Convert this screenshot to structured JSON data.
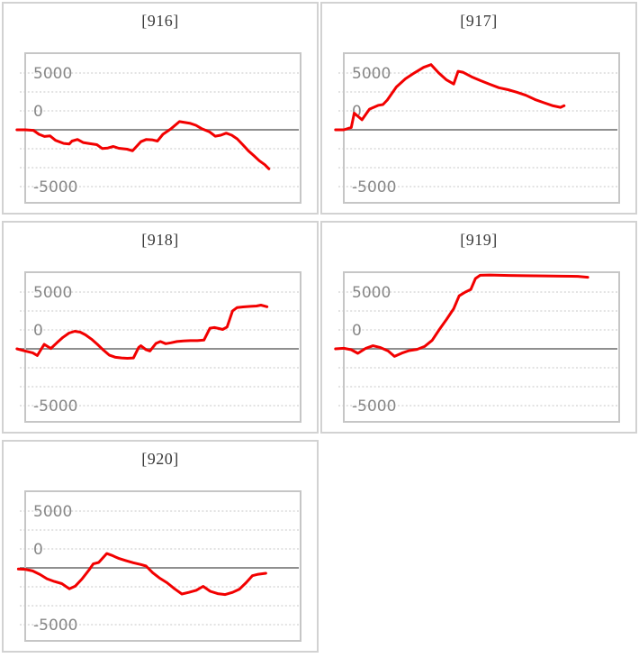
{
  "style": {
    "background": "#ffffff",
    "card_border": "#d2d2d2",
    "plot_border": "#c6c6c6",
    "grid_color": "#d2d2d2",
    "zero_color": "#8f8f8f",
    "tick_label_color": "#878787",
    "title_color": "#3a3a3a",
    "line_color": "#f20000"
  },
  "axis_note": "7 evenly spaced horizontal dotted gridlines; solid dark line on 4th; labels 5000 / 0 / -5000 drawn inside plot on gridlines 1, 3 and 7; no x-axis labels; red series starts slightly left of plot frame at the zero line",
  "chart_data": [
    {
      "type": "line",
      "title": "[916]",
      "yticks_labels": [
        "5000",
        "0",
        "-5000"
      ],
      "ytick_values": [
        5000,
        0,
        -5000
      ],
      "ylim": [
        -6600,
        6900
      ],
      "grid": "horizontal dotted",
      "legend": "none",
      "xlabel": "",
      "ylabel": "",
      "points": [
        [
          -0.03,
          0
        ],
        [
          0,
          0
        ],
        [
          0.03,
          -50
        ],
        [
          0.05,
          -400
        ],
        [
          0.07,
          -590
        ],
        [
          0.09,
          -530
        ],
        [
          0.11,
          -930
        ],
        [
          0.14,
          -1200
        ],
        [
          0.16,
          -1250
        ],
        [
          0.17,
          -990
        ],
        [
          0.19,
          -850
        ],
        [
          0.21,
          -1120
        ],
        [
          0.23,
          -1200
        ],
        [
          0.26,
          -1310
        ],
        [
          0.28,
          -1650
        ],
        [
          0.3,
          -1600
        ],
        [
          0.32,
          -1470
        ],
        [
          0.34,
          -1630
        ],
        [
          0.37,
          -1710
        ],
        [
          0.39,
          -1850
        ],
        [
          0.42,
          -1050
        ],
        [
          0.44,
          -850
        ],
        [
          0.46,
          -880
        ],
        [
          0.48,
          -990
        ],
        [
          0.5,
          -400
        ],
        [
          0.53,
          100
        ],
        [
          0.56,
          720
        ],
        [
          0.58,
          640
        ],
        [
          0.6,
          560
        ],
        [
          0.62,
          400
        ],
        [
          0.64,
          110
        ],
        [
          0.67,
          -190
        ],
        [
          0.69,
          -560
        ],
        [
          0.71,
          -480
        ],
        [
          0.73,
          -290
        ],
        [
          0.75,
          -480
        ],
        [
          0.77,
          -800
        ],
        [
          0.79,
          -1310
        ],
        [
          0.81,
          -1840
        ],
        [
          0.83,
          -2270
        ],
        [
          0.85,
          -2720
        ],
        [
          0.87,
          -3070
        ],
        [
          0.885,
          -3440
        ]
      ]
    },
    {
      "type": "line",
      "title": "[917]",
      "yticks_labels": [
        "5000",
        "0",
        "-5000"
      ],
      "ytick_values": [
        5000,
        0,
        -5000
      ],
      "ylim": [
        -6600,
        6900
      ],
      "grid": "horizontal dotted",
      "legend": "none",
      "xlabel": "",
      "ylabel": "",
      "points": [
        [
          -0.03,
          0
        ],
        [
          0,
          0
        ],
        [
          0.027,
          210
        ],
        [
          0.038,
          1470
        ],
        [
          0.066,
          880
        ],
        [
          0.093,
          1820
        ],
        [
          0.126,
          2160
        ],
        [
          0.142,
          2220
        ],
        [
          0.158,
          2620
        ],
        [
          0.191,
          3770
        ],
        [
          0.224,
          4490
        ],
        [
          0.257,
          5020
        ],
        [
          0.29,
          5500
        ],
        [
          0.317,
          5740
        ],
        [
          0.344,
          5020
        ],
        [
          0.372,
          4410
        ],
        [
          0.399,
          4030
        ],
        [
          0.415,
          5150
        ],
        [
          0.432,
          5070
        ],
        [
          0.464,
          4670
        ],
        [
          0.497,
          4330
        ],
        [
          0.53,
          4010
        ],
        [
          0.563,
          3710
        ],
        [
          0.596,
          3530
        ],
        [
          0.628,
          3310
        ],
        [
          0.661,
          3040
        ],
        [
          0.694,
          2670
        ],
        [
          0.727,
          2380
        ],
        [
          0.76,
          2110
        ],
        [
          0.787,
          1980
        ],
        [
          0.8,
          2120
        ]
      ]
    },
    {
      "type": "line",
      "title": "[918]",
      "yticks_labels": [
        "5000",
        "0",
        "-5000"
      ],
      "ytick_values": [
        5000,
        0,
        -5000
      ],
      "ylim": [
        -6600,
        6900
      ],
      "grid": "horizontal dotted",
      "legend": "none",
      "xlabel": "",
      "ylabel": "",
      "points": [
        [
          -0.03,
          0
        ],
        [
          0,
          -190
        ],
        [
          0.027,
          -350
        ],
        [
          0.044,
          -590
        ],
        [
          0.069,
          400
        ],
        [
          0.093,
          30
        ],
        [
          0.115,
          530
        ],
        [
          0.137,
          1010
        ],
        [
          0.159,
          1390
        ],
        [
          0.18,
          1550
        ],
        [
          0.2,
          1470
        ],
        [
          0.219,
          1230
        ],
        [
          0.241,
          850
        ],
        [
          0.262,
          400
        ],
        [
          0.284,
          -110
        ],
        [
          0.306,
          -560
        ],
        [
          0.328,
          -750
        ],
        [
          0.35,
          -800
        ],
        [
          0.371,
          -830
        ],
        [
          0.393,
          -800
        ],
        [
          0.412,
          130
        ],
        [
          0.42,
          270
        ],
        [
          0.439,
          -80
        ],
        [
          0.453,
          -190
        ],
        [
          0.475,
          480
        ],
        [
          0.491,
          640
        ],
        [
          0.51,
          450
        ],
        [
          0.529,
          530
        ],
        [
          0.551,
          640
        ],
        [
          0.575,
          690
        ],
        [
          0.6,
          720
        ],
        [
          0.625,
          720
        ],
        [
          0.649,
          770
        ],
        [
          0.671,
          1820
        ],
        [
          0.687,
          1870
        ],
        [
          0.704,
          1790
        ],
        [
          0.717,
          1710
        ],
        [
          0.733,
          1920
        ],
        [
          0.753,
          3340
        ],
        [
          0.769,
          3630
        ],
        [
          0.791,
          3690
        ],
        [
          0.818,
          3740
        ],
        [
          0.84,
          3770
        ],
        [
          0.856,
          3850
        ],
        [
          0.878,
          3710
        ]
      ]
    },
    {
      "type": "line",
      "title": "[919]",
      "yticks_labels": [
        "5000",
        "0",
        "-5000"
      ],
      "ytick_values": [
        5000,
        0,
        -5000
      ],
      "ylim": [
        -6600,
        6900
      ],
      "grid": "horizontal dotted",
      "legend": "none",
      "xlabel": "",
      "ylabel": "",
      "points": [
        [
          -0.03,
          0
        ],
        [
          0,
          50
        ],
        [
          0.027,
          -80
        ],
        [
          0.051,
          -400
        ],
        [
          0.08,
          50
        ],
        [
          0.106,
          270
        ],
        [
          0.133,
          110
        ],
        [
          0.161,
          -190
        ],
        [
          0.184,
          -670
        ],
        [
          0.211,
          -370
        ],
        [
          0.237,
          -160
        ],
        [
          0.266,
          -50
        ],
        [
          0.293,
          210
        ],
        [
          0.321,
          750
        ],
        [
          0.347,
          1710
        ],
        [
          0.374,
          2620
        ],
        [
          0.399,
          3530
        ],
        [
          0.419,
          4670
        ],
        [
          0.441,
          4990
        ],
        [
          0.461,
          5230
        ],
        [
          0.478,
          6190
        ],
        [
          0.495,
          6480
        ],
        [
          0.53,
          6500
        ],
        [
          0.6,
          6460
        ],
        [
          0.66,
          6440
        ],
        [
          0.73,
          6420
        ],
        [
          0.79,
          6400
        ],
        [
          0.85,
          6380
        ],
        [
          0.886,
          6300
        ]
      ]
    },
    {
      "type": "line",
      "title": "[920]",
      "yticks_labels": [
        "5000",
        "0",
        "-5000"
      ],
      "ytick_values": [
        5000,
        0,
        -5000
      ],
      "ylim": [
        -6600,
        6900
      ],
      "grid": "horizontal dotted",
      "legend": "none",
      "xlabel": "",
      "ylabel": "",
      "points": [
        [
          -0.025,
          -100
        ],
        [
          0,
          -130
        ],
        [
          0.027,
          -270
        ],
        [
          0.054,
          -590
        ],
        [
          0.079,
          -960
        ],
        [
          0.106,
          -1200
        ],
        [
          0.133,
          -1390
        ],
        [
          0.16,
          -1840
        ],
        [
          0.182,
          -1600
        ],
        [
          0.207,
          -960
        ],
        [
          0.231,
          -210
        ],
        [
          0.247,
          350
        ],
        [
          0.267,
          480
        ],
        [
          0.296,
          1260
        ],
        [
          0.313,
          1120
        ],
        [
          0.338,
          850
        ],
        [
          0.365,
          640
        ],
        [
          0.392,
          450
        ],
        [
          0.42,
          290
        ],
        [
          0.439,
          160
        ],
        [
          0.463,
          -430
        ],
        [
          0.487,
          -880
        ],
        [
          0.515,
          -1310
        ],
        [
          0.542,
          -1840
        ],
        [
          0.569,
          -2300
        ],
        [
          0.594,
          -2160
        ],
        [
          0.621,
          -1980
        ],
        [
          0.646,
          -1630
        ],
        [
          0.672,
          -2060
        ],
        [
          0.699,
          -2270
        ],
        [
          0.726,
          -2350
        ],
        [
          0.753,
          -2160
        ],
        [
          0.778,
          -1870
        ],
        [
          0.802,
          -1310
        ],
        [
          0.825,
          -690
        ],
        [
          0.846,
          -560
        ],
        [
          0.874,
          -480
        ]
      ]
    }
  ]
}
